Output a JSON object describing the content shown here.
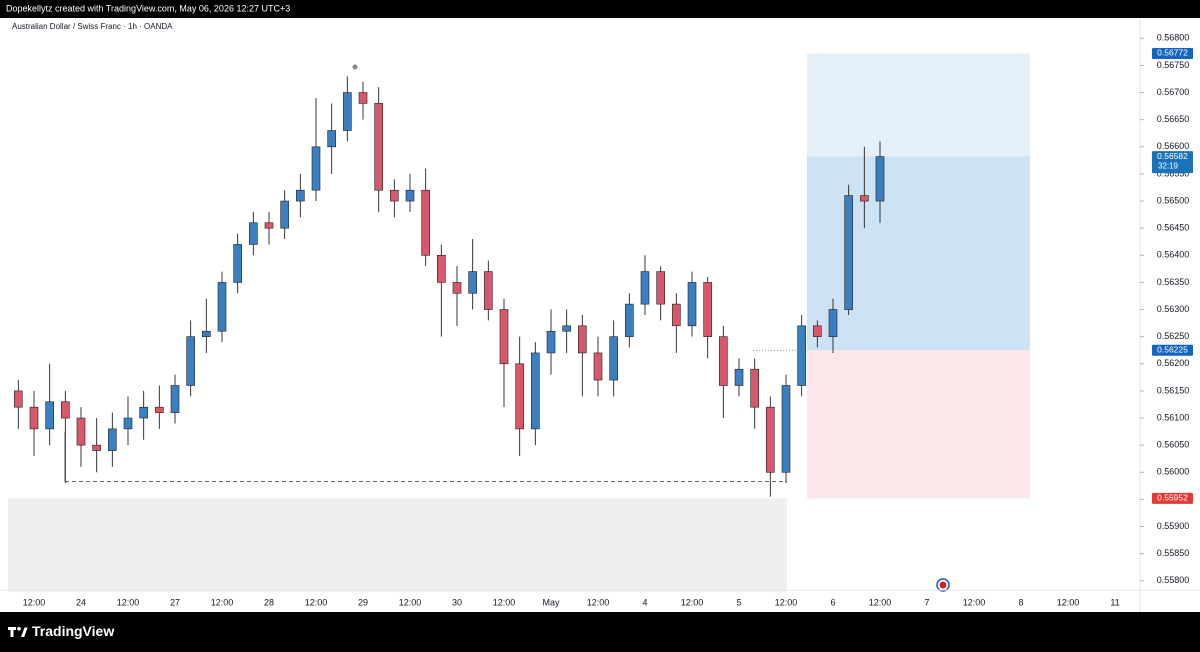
{
  "chart_data": {
    "type": "candlestick",
    "header": "Dopekellytz created with TradingView.com, May 06, 2026 12:27 UTC+3",
    "title": "Australian Dollar / Swiss Franc · 1h · OANDA",
    "brand": "TradingView",
    "categories": [
      null,
      "12:00",
      null,
      null,
      "24",
      null,
      null,
      "12:00",
      null,
      null,
      "27",
      null,
      null,
      "12:00",
      null,
      null,
      "28",
      null,
      null,
      "12:00",
      null,
      null,
      "29",
      null,
      null,
      "12:00",
      null,
      null,
      "30",
      null,
      null,
      "12:00",
      null,
      null,
      "May",
      null,
      null,
      "12:00",
      null,
      null,
      "4",
      null,
      null,
      "12:00",
      null,
      null,
      "5",
      null,
      null,
      "12:00",
      null,
      null,
      "6",
      null,
      null,
      "12:00",
      null,
      null,
      "7",
      null,
      null,
      "12:00",
      null,
      null,
      "8",
      null,
      null,
      "12:00",
      null,
      null,
      "11",
      null
    ],
    "open": [
      0.5615,
      0.5612,
      0.5608,
      0.5613,
      0.561,
      0.5605,
      0.5604,
      0.5608,
      0.561,
      0.5612,
      0.5611,
      0.5616,
      0.5625,
      0.5626,
      0.5635,
      0.5642,
      0.5646,
      0.5645,
      0.565,
      0.5652,
      0.566,
      0.5663,
      0.567,
      0.5668,
      0.5652,
      0.565,
      0.5652,
      0.564,
      0.5635,
      0.5633,
      0.5637,
      0.563,
      0.562,
      0.5608,
      0.5622,
      0.5626,
      0.5627,
      0.5622,
      0.5617,
      0.5625,
      0.5631,
      0.5637,
      0.5631,
      0.5627,
      0.5635,
      0.5625,
      0.5616,
      0.5619,
      0.5612,
      0.56,
      0.5616,
      0.5627,
      0.5625,
      0.563,
      0.5651,
      0.565,
      null,
      null,
      null,
      null,
      null,
      null,
      null,
      null,
      null,
      null,
      null,
      null,
      null,
      null,
      null,
      null
    ],
    "high": [
      0.5617,
      0.5615,
      0.562,
      0.5615,
      0.5612,
      0.561,
      0.5611,
      0.5614,
      0.5615,
      0.5616,
      0.5618,
      0.5628,
      0.5632,
      0.5637,
      0.5644,
      0.5648,
      0.5648,
      0.5652,
      0.5655,
      0.5669,
      0.5668,
      0.5673,
      0.5672,
      0.5671,
      0.5654,
      0.5655,
      0.5656,
      0.5642,
      0.5638,
      0.5643,
      0.5639,
      0.5632,
      0.5625,
      0.5624,
      0.563,
      0.563,
      0.5629,
      0.5625,
      0.5628,
      0.5633,
      0.564,
      0.5638,
      0.5633,
      0.5637,
      0.5636,
      0.5627,
      0.5621,
      0.5621,
      0.5614,
      0.5618,
      0.5629,
      0.5628,
      0.5632,
      0.5653,
      0.566,
      0.5661,
      null,
      null,
      null,
      null,
      null,
      null,
      null,
      null,
      null,
      null,
      null,
      null,
      null,
      null,
      null,
      null
    ],
    "low": [
      0.5608,
      0.5603,
      0.5605,
      0.5598,
      0.5601,
      0.56,
      0.5601,
      0.5605,
      0.5606,
      0.5608,
      0.5609,
      0.5614,
      0.5622,
      0.5624,
      0.5633,
      0.564,
      0.5642,
      0.5643,
      0.5647,
      0.565,
      0.5655,
      0.5661,
      0.5665,
      0.5648,
      0.5647,
      0.5648,
      0.5638,
      0.5625,
      0.5627,
      0.563,
      0.5628,
      0.5612,
      0.5603,
      0.5605,
      0.5618,
      0.5622,
      0.5614,
      0.5614,
      0.5614,
      0.5623,
      0.5629,
      0.5628,
      0.5622,
      0.5625,
      0.5621,
      0.561,
      0.5614,
      0.5608,
      0.55955,
      0.5598,
      0.5614,
      0.5623,
      0.5622,
      0.5629,
      0.5645,
      0.5646,
      null,
      null,
      null,
      null,
      null,
      null,
      null,
      null,
      null,
      null,
      null,
      null,
      null,
      null,
      null,
      null
    ],
    "close": [
      0.5612,
      0.5608,
      0.5613,
      0.561,
      0.5605,
      0.5604,
      0.5608,
      0.561,
      0.5612,
      0.5611,
      0.5616,
      0.5625,
      0.5626,
      0.5635,
      0.5642,
      0.5646,
      0.5645,
      0.565,
      0.5652,
      0.566,
      0.5663,
      0.567,
      0.5668,
      0.5652,
      0.565,
      0.5652,
      0.564,
      0.5635,
      0.5633,
      0.5637,
      0.563,
      0.562,
      0.5608,
      0.5622,
      0.5626,
      0.5627,
      0.5622,
      0.5617,
      0.5625,
      0.5631,
      0.5637,
      0.5631,
      0.5627,
      0.5635,
      0.5625,
      0.5616,
      0.5619,
      0.5612,
      0.56,
      0.5616,
      0.5627,
      0.5625,
      0.563,
      0.5651,
      0.565,
      0.56582,
      null,
      null,
      null,
      null,
      null,
      null,
      null,
      null,
      null,
      null,
      null,
      null,
      null,
      null,
      null,
      null
    ],
    "up_color": "#3a7fc1",
    "down_color": "#d9576a",
    "ylim": [
      0.55783,
      0.56819
    ],
    "yticks": [
      {
        "value": 0.558,
        "label": "0.55800"
      },
      {
        "value": 0.5585,
        "label": "0.55850"
      },
      {
        "value": 0.559,
        "label": "0.55900"
      },
      {
        "value": 0.5595,
        "label": "0.55950"
      },
      {
        "value": 0.56,
        "label": "0.56000"
      },
      {
        "value": 0.5605,
        "label": "0.56050"
      },
      {
        "value": 0.561,
        "label": "0.56100"
      },
      {
        "value": 0.5615,
        "label": "0.56150"
      },
      {
        "value": 0.562,
        "label": "0.56200"
      },
      {
        "value": 0.5625,
        "label": "0.56250"
      },
      {
        "value": 0.563,
        "label": "0.56300"
      },
      {
        "value": 0.5635,
        "label": "0.56350"
      },
      {
        "value": 0.564,
        "label": "0.56400"
      },
      {
        "value": 0.5645,
        "label": "0.56450"
      },
      {
        "value": 0.565,
        "label": "0.56500"
      },
      {
        "value": 0.5655,
        "label": "0.56550"
      },
      {
        "value": 0.566,
        "label": "0.56600"
      },
      {
        "value": 0.5665,
        "label": "0.56650"
      },
      {
        "value": 0.567,
        "label": "0.56700"
      },
      {
        "value": 0.5675,
        "label": "0.56750"
      },
      {
        "value": 0.568,
        "label": "0.56800"
      }
    ],
    "position": {
      "target": 0.56772,
      "entry": 0.56225,
      "stop": 0.55952
    },
    "last_price": 0.56582,
    "countdown": "32:19",
    "support_zone": [
      0.5578,
      0.55952
    ],
    "dashed_level": 0.55983
  }
}
